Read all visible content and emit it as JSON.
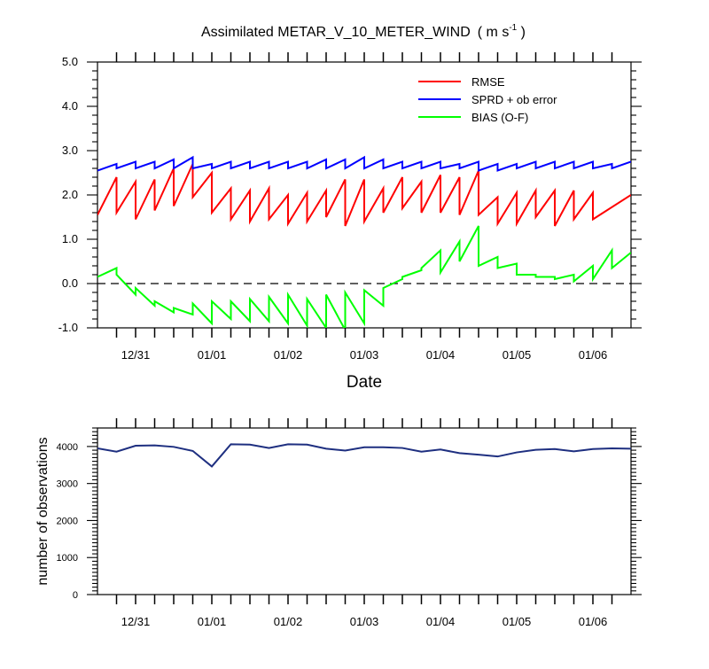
{
  "chart_data": [
    {
      "type": "line",
      "title": "Assimilated METAR_V_10_METER_WIND",
      "title_units": "( m s",
      "title_units_sup": "-1",
      "title_units_close": " )",
      "xlabel": "Date",
      "ylabel": "",
      "ylim": [
        -1.0,
        5.0
      ],
      "xlim": [
        0,
        84
      ],
      "y_ticks": [
        "5.0",
        "4.0",
        "3.0",
        "2.0",
        "1.0",
        "0.0",
        "-1.0"
      ],
      "y_tick_values": [
        5,
        4,
        3,
        2,
        1,
        0,
        -1
      ],
      "x_tick_labels": [
        "12/31",
        "01/01",
        "01/02",
        "01/03",
        "01/04",
        "01/05",
        "01/06"
      ],
      "x_tick_values": [
        6,
        18,
        30,
        42,
        54,
        66,
        78
      ],
      "reference_line": 0,
      "legend": [
        "RMSE",
        "SPRD + ob error",
        "BIAS (O-F)"
      ],
      "legend_position": "top-right",
      "series": [
        {
          "name": "RMSE",
          "color": "#ff0000",
          "points": [
            [
              0,
              1.55
            ],
            [
              3,
              2.4
            ],
            [
              3,
              1.6
            ],
            [
              6,
              2.3
            ],
            [
              6,
              1.45
            ],
            [
              9,
              2.35
            ],
            [
              9,
              1.65
            ],
            [
              12,
              2.6
            ],
            [
              12,
              1.75
            ],
            [
              15,
              2.7
            ],
            [
              15,
              1.95
            ],
            [
              18,
              2.5
            ],
            [
              18,
              1.6
            ],
            [
              21,
              2.15
            ],
            [
              21,
              1.45
            ],
            [
              24,
              2.1
            ],
            [
              24,
              1.4
            ],
            [
              27,
              2.15
            ],
            [
              27,
              1.45
            ],
            [
              30,
              2.0
            ],
            [
              30,
              1.35
            ],
            [
              33,
              2.05
            ],
            [
              33,
              1.4
            ],
            [
              36,
              2.1
            ],
            [
              36,
              1.5
            ],
            [
              39,
              2.35
            ],
            [
              39,
              1.3
            ],
            [
              42,
              2.35
            ],
            [
              42,
              1.4
            ],
            [
              45,
              2.15
            ],
            [
              45,
              1.6
            ],
            [
              48,
              2.4
            ],
            [
              48,
              1.7
            ],
            [
              51,
              2.3
            ],
            [
              51,
              1.6
            ],
            [
              54,
              2.45
            ],
            [
              54,
              1.6
            ],
            [
              57,
              2.4
            ],
            [
              57,
              1.55
            ],
            [
              60,
              2.55
            ],
            [
              60,
              1.55
            ],
            [
              63,
              1.95
            ],
            [
              63,
              1.35
            ],
            [
              66,
              2.05
            ],
            [
              66,
              1.35
            ],
            [
              69,
              2.1
            ],
            [
              69,
              1.5
            ],
            [
              72,
              2.1
            ],
            [
              72,
              1.3
            ],
            [
              75,
              2.1
            ],
            [
              75,
              1.45
            ],
            [
              78,
              2.05
            ],
            [
              78,
              1.45
            ],
            [
              84,
              2.0
            ]
          ]
        },
        {
          "name": "SPRD + ob error",
          "color": "#0000ff",
          "points": [
            [
              0,
              2.55
            ],
            [
              3,
              2.7
            ],
            [
              3,
              2.6
            ],
            [
              6,
              2.75
            ],
            [
              6,
              2.6
            ],
            [
              9,
              2.75
            ],
            [
              9,
              2.6
            ],
            [
              12,
              2.8
            ],
            [
              12,
              2.6
            ],
            [
              15,
              2.85
            ],
            [
              15,
              2.6
            ],
            [
              18,
              2.7
            ],
            [
              18,
              2.6
            ],
            [
              21,
              2.75
            ],
            [
              21,
              2.6
            ],
            [
              24,
              2.75
            ],
            [
              24,
              2.6
            ],
            [
              27,
              2.75
            ],
            [
              27,
              2.6
            ],
            [
              30,
              2.75
            ],
            [
              30,
              2.6
            ],
            [
              33,
              2.75
            ],
            [
              33,
              2.6
            ],
            [
              36,
              2.8
            ],
            [
              36,
              2.6
            ],
            [
              39,
              2.8
            ],
            [
              39,
              2.6
            ],
            [
              42,
              2.85
            ],
            [
              42,
              2.6
            ],
            [
              45,
              2.8
            ],
            [
              45,
              2.6
            ],
            [
              48,
              2.75
            ],
            [
              48,
              2.6
            ],
            [
              51,
              2.75
            ],
            [
              51,
              2.6
            ],
            [
              54,
              2.75
            ],
            [
              54,
              2.6
            ],
            [
              57,
              2.7
            ],
            [
              57,
              2.6
            ],
            [
              60,
              2.75
            ],
            [
              60,
              2.55
            ],
            [
              63,
              2.7
            ],
            [
              63,
              2.55
            ],
            [
              66,
              2.7
            ],
            [
              66,
              2.6
            ],
            [
              69,
              2.75
            ],
            [
              69,
              2.6
            ],
            [
              72,
              2.75
            ],
            [
              72,
              2.6
            ],
            [
              75,
              2.75
            ],
            [
              75,
              2.6
            ],
            [
              78,
              2.75
            ],
            [
              78,
              2.6
            ],
            [
              81,
              2.7
            ],
            [
              81,
              2.6
            ],
            [
              84,
              2.75
            ]
          ]
        },
        {
          "name": "BIAS (O-F)",
          "color": "#00ff00",
          "points": [
            [
              0,
              0.15
            ],
            [
              3,
              0.35
            ],
            [
              3,
              0.2
            ],
            [
              6,
              -0.25
            ],
            [
              6,
              -0.1
            ],
            [
              9,
              -0.5
            ],
            [
              9,
              -0.4
            ],
            [
              12,
              -0.65
            ],
            [
              12,
              -0.55
            ],
            [
              15,
              -0.7
            ],
            [
              15,
              -0.45
            ],
            [
              18,
              -0.9
            ],
            [
              18,
              -0.4
            ],
            [
              21,
              -0.8
            ],
            [
              21,
              -0.4
            ],
            [
              24,
              -0.85
            ],
            [
              24,
              -0.35
            ],
            [
              27,
              -0.85
            ],
            [
              27,
              -0.3
            ],
            [
              30,
              -0.9
            ],
            [
              30,
              -0.25
            ],
            [
              33,
              -0.95
            ],
            [
              33,
              -0.35
            ],
            [
              36,
              -1.0
            ],
            [
              36,
              -0.25
            ],
            [
              39,
              -1.05
            ],
            [
              39,
              -0.2
            ],
            [
              42,
              -0.9
            ],
            [
              42,
              -0.15
            ],
            [
              45,
              -0.5
            ],
            [
              45,
              -0.1
            ],
            [
              48,
              0.1
            ],
            [
              48,
              0.15
            ],
            [
              51,
              0.3
            ],
            [
              51,
              0.35
            ],
            [
              54,
              0.75
            ],
            [
              54,
              0.25
            ],
            [
              57,
              0.95
            ],
            [
              57,
              0.5
            ],
            [
              60,
              1.3
            ],
            [
              60,
              0.4
            ],
            [
              63,
              0.6
            ],
            [
              63,
              0.35
            ],
            [
              66,
              0.45
            ],
            [
              66,
              0.2
            ],
            [
              69,
              0.2
            ],
            [
              69,
              0.15
            ],
            [
              72,
              0.15
            ],
            [
              72,
              0.1
            ],
            [
              75,
              0.2
            ],
            [
              75,
              0.05
            ],
            [
              78,
              0.4
            ],
            [
              78,
              0.1
            ],
            [
              81,
              0.75
            ],
            [
              81,
              0.35
            ],
            [
              84,
              0.7
            ]
          ]
        }
      ]
    },
    {
      "type": "line",
      "title": "",
      "xlabel": "",
      "ylabel": "number of observations",
      "ylim": [
        0,
        4500
      ],
      "xlim": [
        0,
        84
      ],
      "y_ticks": [
        "0",
        "1000",
        "2000",
        "3000",
        "4000"
      ],
      "y_tick_values": [
        0,
        1000,
        2000,
        3000,
        4000
      ],
      "x_tick_labels": [
        "12/31",
        "01/01",
        "01/02",
        "01/03",
        "01/04",
        "01/05",
        "01/06"
      ],
      "x_tick_values": [
        6,
        18,
        30,
        42,
        54,
        66,
        78
      ],
      "series": [
        {
          "name": "observations",
          "color": "#1e2f80",
          "points": [
            [
              0,
              3950
            ],
            [
              3,
              3860
            ],
            [
              6,
              4020
            ],
            [
              9,
              4030
            ],
            [
              12,
              3990
            ],
            [
              15,
              3880
            ],
            [
              18,
              3460
            ],
            [
              21,
              4060
            ],
            [
              24,
              4050
            ],
            [
              27,
              3960
            ],
            [
              30,
              4060
            ],
            [
              33,
              4050
            ],
            [
              36,
              3940
            ],
            [
              39,
              3890
            ],
            [
              42,
              3980
            ],
            [
              45,
              3980
            ],
            [
              48,
              3960
            ],
            [
              51,
              3860
            ],
            [
              54,
              3920
            ],
            [
              57,
              3820
            ],
            [
              60,
              3780
            ],
            [
              63,
              3730
            ],
            [
              66,
              3840
            ],
            [
              69,
              3910
            ],
            [
              72,
              3930
            ],
            [
              75,
              3870
            ],
            [
              78,
              3930
            ],
            [
              81,
              3950
            ],
            [
              84,
              3940
            ]
          ]
        }
      ]
    }
  ]
}
